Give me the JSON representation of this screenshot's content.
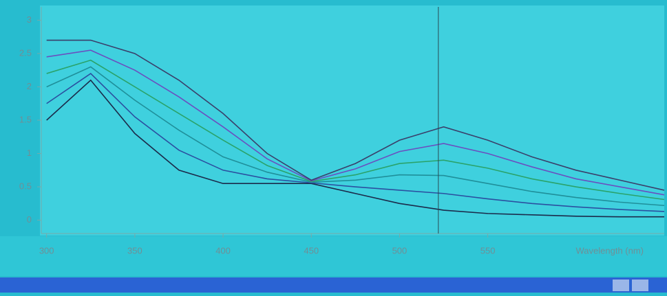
{
  "chart_data": {
    "type": "line",
    "x": [
      300,
      325,
      350,
      375,
      400,
      425,
      450,
      475,
      500,
      525,
      550,
      575,
      600,
      625,
      650
    ],
    "series": [
      {
        "color": "#1b2a4a",
        "values": [
          1.5,
          2.1,
          1.3,
          0.75,
          0.55,
          0.55,
          0.55,
          0.4,
          0.25,
          0.15,
          0.1,
          0.08,
          0.06,
          0.05,
          0.05
        ]
      },
      {
        "color": "#2b4fa0",
        "values": [
          1.75,
          2.2,
          1.55,
          1.05,
          0.75,
          0.62,
          0.56,
          0.5,
          0.45,
          0.4,
          0.32,
          0.25,
          0.2,
          0.16,
          0.13
        ]
      },
      {
        "color": "#1f8f9a",
        "values": [
          2.0,
          2.3,
          1.8,
          1.35,
          0.95,
          0.72,
          0.57,
          0.6,
          0.68,
          0.67,
          0.55,
          0.43,
          0.34,
          0.27,
          0.22
        ]
      },
      {
        "color": "#2aa36a",
        "values": [
          2.2,
          2.4,
          2.0,
          1.6,
          1.2,
          0.82,
          0.58,
          0.68,
          0.85,
          0.9,
          0.78,
          0.62,
          0.5,
          0.4,
          0.31
        ]
      },
      {
        "color": "#6a4fc0",
        "values": [
          2.45,
          2.55,
          2.25,
          1.85,
          1.4,
          0.92,
          0.59,
          0.77,
          1.03,
          1.15,
          1.0,
          0.8,
          0.62,
          0.5,
          0.38
        ]
      },
      {
        "color": "#3a3f6a",
        "values": [
          2.7,
          2.7,
          2.5,
          2.1,
          1.6,
          1.0,
          0.6,
          0.85,
          1.2,
          1.4,
          1.2,
          0.95,
          0.75,
          0.6,
          0.45
        ]
      }
    ],
    "x_label": "Wavelength (nm)",
    "xlim": [
      297,
      650
    ],
    "xticks": [
      300,
      350,
      400,
      450,
      500,
      550
    ],
    "ylim": [
      -0.2,
      3.2
    ],
    "yticks": [
      0,
      0.5,
      1,
      1.5,
      2,
      2.5,
      3
    ],
    "cursor_x": 522
  }
}
